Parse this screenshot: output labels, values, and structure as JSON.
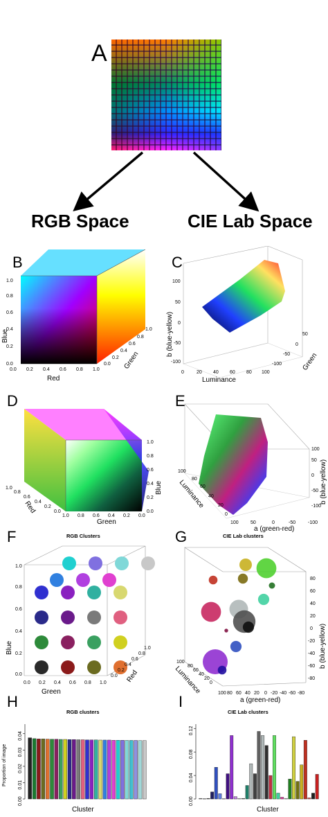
{
  "panels": {
    "a": "A",
    "b": "B",
    "c": "C",
    "d": "D",
    "e": "E",
    "f": "F",
    "g": "G",
    "h": "H",
    "i": "I"
  },
  "headings": {
    "rgb": "RGB Space",
    "lab": "CIE Lab Space"
  },
  "panel_b": {
    "x_label": "Red",
    "y_label": "Blue",
    "z_label": "Green",
    "x_ticks": [
      "0.0",
      "0.2",
      "0.4",
      "0.6",
      "0.8",
      "1.0"
    ],
    "y_ticks": [
      "0.0",
      "0.2",
      "0.4",
      "0.6",
      "0.8",
      "1.0"
    ],
    "z_ticks": [
      "0.0",
      "0.2",
      "0.4",
      "0.6",
      "0.8",
      "1.0"
    ]
  },
  "panel_c": {
    "x_label": "Luminance",
    "y_label": "b (blue-yellow)",
    "z_label": "Green",
    "x_ticks": [
      "0",
      "20",
      "40",
      "60",
      "80",
      "100"
    ],
    "y_ticks": [
      "-100",
      "-50",
      "0",
      "50",
      "100"
    ],
    "z_ticks": [
      "-100",
      "-50",
      "0",
      "50"
    ]
  },
  "panel_d": {
    "x_label": "Green",
    "y_label": "Red",
    "z_label": "Blue",
    "x_ticks": [
      "1.0",
      "0.8",
      "0.6",
      "0.4",
      "0.2",
      "0.0"
    ],
    "y_ticks": [
      "1.0",
      "0.8",
      "0.6",
      "0.4",
      "0.2",
      "0.0"
    ],
    "z_ticks": [
      "0.0",
      "0.2",
      "0.4",
      "0.6",
      "0.8",
      "1.0"
    ]
  },
  "panel_e": {
    "x_label": "a (green-red)",
    "y_label": "Luminance",
    "z_label": "b (blue-yellow)",
    "x_ticks": [
      "100",
      "50",
      "0",
      "-50",
      "-100"
    ],
    "y_ticks": [
      "0",
      "20",
      "40",
      "60",
      "80",
      "100"
    ],
    "z_ticks": [
      "-100",
      "-50",
      "0",
      "50",
      "100"
    ]
  },
  "panel_f": {
    "title": "RGB Clusters",
    "x_label": "Green",
    "y_label": "Blue",
    "z_label": "Red",
    "x_ticks": [
      "0.0",
      "0.2",
      "0.4",
      "0.6",
      "0.8",
      "1.0"
    ],
    "y_ticks": [
      "0.0",
      "0.2",
      "0.4",
      "0.6",
      "0.8",
      "1.0"
    ],
    "z_ticks": [
      "0.0",
      "0.2",
      "0.4",
      "0.6",
      "0.8",
      "1.0"
    ],
    "clusters": [
      {
        "color": "#2a2a2a",
        "col": 0,
        "row": 0,
        "depth": 0
      },
      {
        "color": "#8b1a1a",
        "col": 1,
        "row": 0,
        "depth": 0
      },
      {
        "color": "#6b6b20",
        "col": 2,
        "row": 0,
        "depth": 0
      },
      {
        "color": "#e07030",
        "col": 3,
        "row": 0,
        "depth": 0
      },
      {
        "color": "#2d8a3a",
        "col": 0,
        "row": 1,
        "depth": 0
      },
      {
        "color": "#8a2060",
        "col": 1,
        "row": 1,
        "depth": 0
      },
      {
        "color": "#3aa060",
        "col": 2,
        "row": 1,
        "depth": 0
      },
      {
        "color": "#d0d020",
        "col": 3,
        "row": 1,
        "depth": 0
      },
      {
        "color": "#2a2a8a",
        "col": 0,
        "row": 2,
        "depth": 0
      },
      {
        "color": "#6a1a8a",
        "col": 1,
        "row": 2,
        "depth": 0
      },
      {
        "color": "#7a7a7a",
        "col": 2,
        "row": 2,
        "depth": 0
      },
      {
        "color": "#e06080",
        "col": 3,
        "row": 2,
        "depth": 0
      },
      {
        "color": "#3030d0",
        "col": 0,
        "row": 3,
        "depth": 0
      },
      {
        "color": "#8a20c0",
        "col": 1,
        "row": 3,
        "depth": 0
      },
      {
        "color": "#30b0a0",
        "col": 2,
        "row": 3,
        "depth": 0
      },
      {
        "color": "#d8d870",
        "col": 3,
        "row": 3,
        "depth": 0
      },
      {
        "color": "#3080e0",
        "col": 0,
        "row": 4,
        "depth": 0
      },
      {
        "color": "#b040e0",
        "col": 1,
        "row": 4,
        "depth": 0
      },
      {
        "color": "#e040d0",
        "col": 2,
        "row": 4,
        "depth": 0
      },
      {
        "color": "#20d0d0",
        "col": 0,
        "row": 5,
        "depth": 0
      },
      {
        "color": "#8070e0",
        "col": 1,
        "row": 5,
        "depth": 0
      },
      {
        "color": "#80d8d8",
        "col": 2,
        "row": 5,
        "depth": 0
      },
      {
        "color": "#c8c8c8",
        "col": 3,
        "row": 5,
        "depth": 0
      }
    ]
  },
  "panel_g": {
    "title": "CIE Lab clusters",
    "x_label": "a (green-red)",
    "y_label": "Luminance",
    "z_label": "b (blue-yellow)",
    "x_ticks": [
      "100",
      "80",
      "60",
      "40",
      "20",
      "0",
      "-20",
      "-40",
      "-60",
      "-80"
    ],
    "y_ticks": [
      "0",
      "20",
      "40",
      "60",
      "80",
      "100"
    ],
    "z_ticks": [
      "-80",
      "-60",
      "-40",
      "-20",
      "0",
      "20",
      "40",
      "60",
      "80"
    ],
    "clusters": [
      {
        "color": "#c8b020",
        "size": 1.0
      },
      {
        "color": "#50d030",
        "size": 1.6
      },
      {
        "color": "#c03020",
        "size": 0.7
      },
      {
        "color": "#7a6a10",
        "size": 0.8
      },
      {
        "color": "#207020",
        "size": 0.5
      },
      {
        "color": "#40d0a0",
        "size": 0.9
      },
      {
        "color": "#b0b8b8",
        "size": 1.5
      },
      {
        "color": "#c82860",
        "size": 1.6
      },
      {
        "color": "#505050",
        "size": 1.8
      },
      {
        "color": "#101010",
        "size": 0.9
      },
      {
        "color": "#801040",
        "size": 0.3
      },
      {
        "color": "#3050c0",
        "size": 0.9
      },
      {
        "color": "#9030d0",
        "size": 2.0
      },
      {
        "color": "#2010a0",
        "size": 0.7
      }
    ]
  },
  "chart_data": [
    {
      "type": "bar",
      "title": "RGB clusters",
      "xlabel": "Cluster",
      "ylabel": "Proportion of image",
      "ylim": [
        0,
        0.045
      ],
      "y_ticks": [
        "0.00",
        "0.01",
        "0.02",
        "0.03",
        "0.04"
      ],
      "values": [
        0.0375,
        0.037,
        0.0368,
        0.0368,
        0.0367,
        0.0366,
        0.0366,
        0.0365,
        0.0365,
        0.0364,
        0.0364,
        0.0363,
        0.0363,
        0.0362,
        0.0362,
        0.0362,
        0.0361,
        0.0361,
        0.0361,
        0.036,
        0.036,
        0.036,
        0.0359,
        0.0359,
        0.0359,
        0.0358,
        0.0358
      ],
      "colors": [
        "#222222",
        "#1a7a30",
        "#8a1a1a",
        "#6b6b20",
        "#e07030",
        "#2d8a3a",
        "#8a2060",
        "#3aa060",
        "#d0d020",
        "#2a2a8a",
        "#6a1a8a",
        "#7a7a7a",
        "#e06080",
        "#3030d0",
        "#8a20c0",
        "#30b0a0",
        "#d8d870",
        "#3080e0",
        "#b040e0",
        "#e040d0",
        "#20d0d0",
        "#8070e0",
        "#80d8d8",
        "#40c0d0",
        "#9090e0",
        "#a0d8d8",
        "#c8c8c8"
      ]
    },
    {
      "type": "bar",
      "title": "CIE Lab clusters",
      "xlabel": "Cluster",
      "ylabel": "",
      "ylim": [
        0,
        0.125
      ],
      "y_ticks": [
        "0.00",
        "0.04",
        "0.08",
        "0.12"
      ],
      "values": [
        0.001,
        0.0005,
        0.001,
        0.012,
        0.054,
        0.009,
        0.0005,
        0.043,
        0.108,
        0.004,
        0.001,
        0.001,
        0.023,
        0.06,
        0.043,
        0.115,
        0.108,
        0.091,
        0.04,
        0.108,
        0.01,
        0.003,
        0.001,
        0.034,
        0.106,
        0.03,
        0.058,
        0.1,
        0.002,
        0.01,
        0.042
      ],
      "colors": [
        "#808080",
        "#606060",
        "#404040",
        "#202060",
        "#3050c0",
        "#6080e0",
        "#a0a0d0",
        "#401080",
        "#9030d0",
        "#c080e0",
        "#e0e0e0",
        "#606060",
        "#20806a",
        "#b0b8b8",
        "#404040",
        "#606060",
        "#b0b8b8",
        "#303030",
        "#c03040",
        "#60e060",
        "#40d0a0",
        "#e040a0",
        "#f0f0f0",
        "#208020",
        "#d0d040",
        "#707010",
        "#c8b020",
        "#c03020",
        "#e06060",
        "#202020",
        "#c82020"
      ]
    }
  ]
}
